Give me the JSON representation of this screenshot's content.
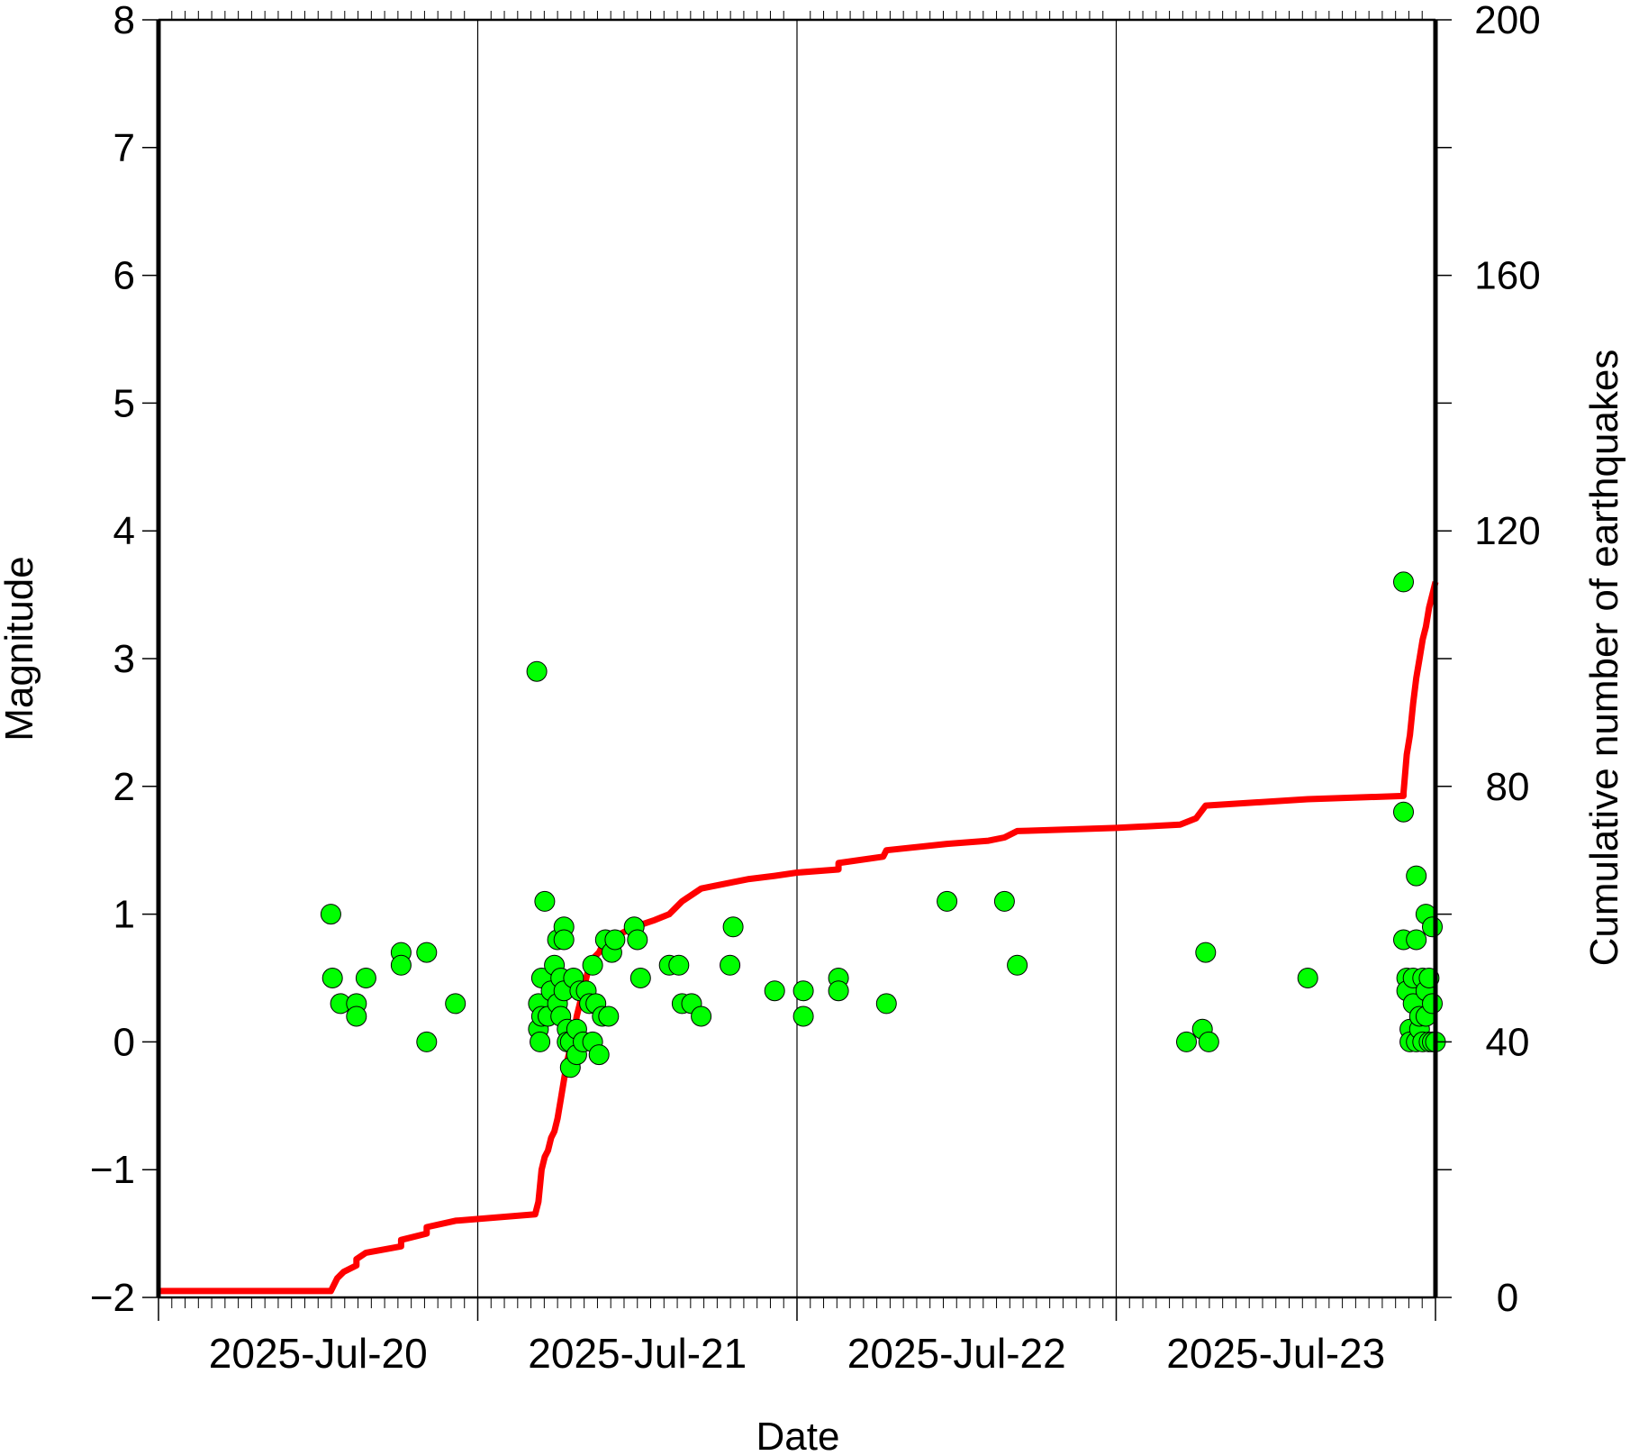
{
  "chart_data": {
    "type": "scatter",
    "xlabel": "Date",
    "ylabel": "Magnitude",
    "y2label": "Cumulative number of earthquakes",
    "xlim": [
      0,
      4
    ],
    "x_unit": "days from 2025-Jul-20 00:00",
    "x_tick_labels": [
      "2025-Jul-20",
      "2025-Jul-21",
      "2025-Jul-22",
      "2025-Jul-23"
    ],
    "ylim": [
      -2,
      8
    ],
    "y_ticks": [
      "−2",
      "−1",
      "0",
      "1",
      "2",
      "3",
      "4",
      "5",
      "6",
      "7",
      "8"
    ],
    "y2lim": [
      0,
      200
    ],
    "y2_ticks": [
      "0",
      "40",
      "80",
      "120",
      "160",
      "200"
    ],
    "grid": "vertical lines at day boundaries",
    "marker_color": "#00ff00",
    "line_color": "#ff0000",
    "series": [
      {
        "type": "scatter",
        "axis": "left",
        "points": [
          [
            0.54,
            1.0
          ],
          [
            0.545,
            0.5
          ],
          [
            0.57,
            0.3
          ],
          [
            0.62,
            0.3
          ],
          [
            0.62,
            0.2
          ],
          [
            0.65,
            0.5
          ],
          [
            0.76,
            0.7
          ],
          [
            0.76,
            0.6
          ],
          [
            0.84,
            0.7
          ],
          [
            0.84,
            0.0
          ],
          [
            0.93,
            0.3
          ],
          [
            1.185,
            2.9
          ],
          [
            1.19,
            0.3
          ],
          [
            1.19,
            0.1
          ],
          [
            1.195,
            0.0
          ],
          [
            1.2,
            0.2
          ],
          [
            1.2,
            0.5
          ],
          [
            1.21,
            1.1
          ],
          [
            1.22,
            0.2
          ],
          [
            1.23,
            0.4
          ],
          [
            1.24,
            0.6
          ],
          [
            1.25,
            0.8
          ],
          [
            1.25,
            0.3
          ],
          [
            1.26,
            0.2
          ],
          [
            1.26,
            0.5
          ],
          [
            1.27,
            0.9
          ],
          [
            1.27,
            0.8
          ],
          [
            1.27,
            0.4
          ],
          [
            1.28,
            0.1
          ],
          [
            1.28,
            0.0
          ],
          [
            1.29,
            -0.2
          ],
          [
            1.29,
            0.0
          ],
          [
            1.3,
            0.5
          ],
          [
            1.31,
            -0.1
          ],
          [
            1.31,
            0.1
          ],
          [
            1.32,
            0.4
          ],
          [
            1.33,
            0.0
          ],
          [
            1.34,
            0.4
          ],
          [
            1.35,
            0.3
          ],
          [
            1.36,
            0.0
          ],
          [
            1.36,
            0.6
          ],
          [
            1.37,
            0.3
          ],
          [
            1.38,
            -0.1
          ],
          [
            1.39,
            0.2
          ],
          [
            1.4,
            0.8
          ],
          [
            1.41,
            0.2
          ],
          [
            1.42,
            0.7
          ],
          [
            1.43,
            0.8
          ],
          [
            1.49,
            0.9
          ],
          [
            1.5,
            0.8
          ],
          [
            1.51,
            0.5
          ],
          [
            1.6,
            0.6
          ],
          [
            1.63,
            0.6
          ],
          [
            1.64,
            0.3
          ],
          [
            1.67,
            0.3
          ],
          [
            1.7,
            0.2
          ],
          [
            1.79,
            0.6
          ],
          [
            1.8,
            0.9
          ],
          [
            1.93,
            0.4
          ],
          [
            2.02,
            0.4
          ],
          [
            2.02,
            0.2
          ],
          [
            2.13,
            0.5
          ],
          [
            2.13,
            0.4
          ],
          [
            2.28,
            0.3
          ],
          [
            2.47,
            1.1
          ],
          [
            2.65,
            1.1
          ],
          [
            2.69,
            0.6
          ],
          [
            3.22,
            0.0
          ],
          [
            3.27,
            0.1
          ],
          [
            3.28,
            0.7
          ],
          [
            3.29,
            0.0
          ],
          [
            3.6,
            0.5
          ],
          [
            3.9,
            3.6
          ],
          [
            3.9,
            1.8
          ],
          [
            3.9,
            0.8
          ],
          [
            3.91,
            0.5
          ],
          [
            3.91,
            0.4
          ],
          [
            3.92,
            0.1
          ],
          [
            3.92,
            0.0
          ],
          [
            3.93,
            0.3
          ],
          [
            3.93,
            0.5
          ],
          [
            3.94,
            0.8
          ],
          [
            3.94,
            1.3
          ],
          [
            3.94,
            0.0
          ],
          [
            3.95,
            0.1
          ],
          [
            3.95,
            0.2
          ],
          [
            3.96,
            0.5
          ],
          [
            3.96,
            0.0
          ],
          [
            3.97,
            0.4
          ],
          [
            3.97,
            0.2
          ],
          [
            3.97,
            1.0
          ],
          [
            3.98,
            0.0
          ],
          [
            3.98,
            0.5
          ],
          [
            3.99,
            0.3
          ],
          [
            3.99,
            0.9
          ],
          [
            3.99,
            0.0
          ],
          [
            4.0,
            0.0
          ]
        ]
      },
      {
        "type": "line",
        "axis": "right",
        "points": [
          [
            0.0,
            1
          ],
          [
            0.54,
            1
          ],
          [
            0.56,
            3
          ],
          [
            0.58,
            4
          ],
          [
            0.62,
            5
          ],
          [
            0.62,
            6
          ],
          [
            0.65,
            7
          ],
          [
            0.76,
            8
          ],
          [
            0.76,
            9
          ],
          [
            0.84,
            10
          ],
          [
            0.84,
            11
          ],
          [
            0.93,
            12
          ],
          [
            1.18,
            13
          ],
          [
            1.19,
            15
          ],
          [
            1.2,
            20
          ],
          [
            1.21,
            22
          ],
          [
            1.22,
            23
          ],
          [
            1.23,
            25
          ],
          [
            1.24,
            26
          ],
          [
            1.25,
            28
          ],
          [
            1.26,
            31
          ],
          [
            1.27,
            34
          ],
          [
            1.28,
            37
          ],
          [
            1.29,
            39
          ],
          [
            1.3,
            41
          ],
          [
            1.31,
            44
          ],
          [
            1.32,
            46
          ],
          [
            1.33,
            48
          ],
          [
            1.34,
            50
          ],
          [
            1.35,
            52
          ],
          [
            1.36,
            53
          ],
          [
            1.38,
            54
          ],
          [
            1.39,
            55
          ],
          [
            1.4,
            56
          ],
          [
            1.42,
            56
          ],
          [
            1.45,
            57
          ],
          [
            1.49,
            58
          ],
          [
            1.55,
            59
          ],
          [
            1.6,
            60
          ],
          [
            1.62,
            61
          ],
          [
            1.64,
            62
          ],
          [
            1.67,
            63
          ],
          [
            1.7,
            64
          ],
          [
            1.8,
            65
          ],
          [
            1.85,
            65.5
          ],
          [
            1.93,
            66
          ],
          [
            2.0,
            66.5
          ],
          [
            2.13,
            67
          ],
          [
            2.13,
            68
          ],
          [
            2.27,
            69
          ],
          [
            2.28,
            70
          ],
          [
            2.47,
            71
          ],
          [
            2.6,
            71.5
          ],
          [
            2.65,
            72
          ],
          [
            2.69,
            73
          ],
          [
            3.0,
            73.5
          ],
          [
            3.2,
            74
          ],
          [
            3.25,
            75
          ],
          [
            3.28,
            77
          ],
          [
            3.6,
            78
          ],
          [
            3.9,
            78.5
          ],
          [
            3.9,
            79
          ],
          [
            3.91,
            85
          ],
          [
            3.92,
            88
          ],
          [
            3.93,
            93
          ],
          [
            3.94,
            97
          ],
          [
            3.95,
            100
          ],
          [
            3.96,
            103
          ],
          [
            3.97,
            105
          ],
          [
            3.98,
            108
          ],
          [
            3.99,
            110
          ],
          [
            4.0,
            112
          ]
        ]
      }
    ]
  }
}
